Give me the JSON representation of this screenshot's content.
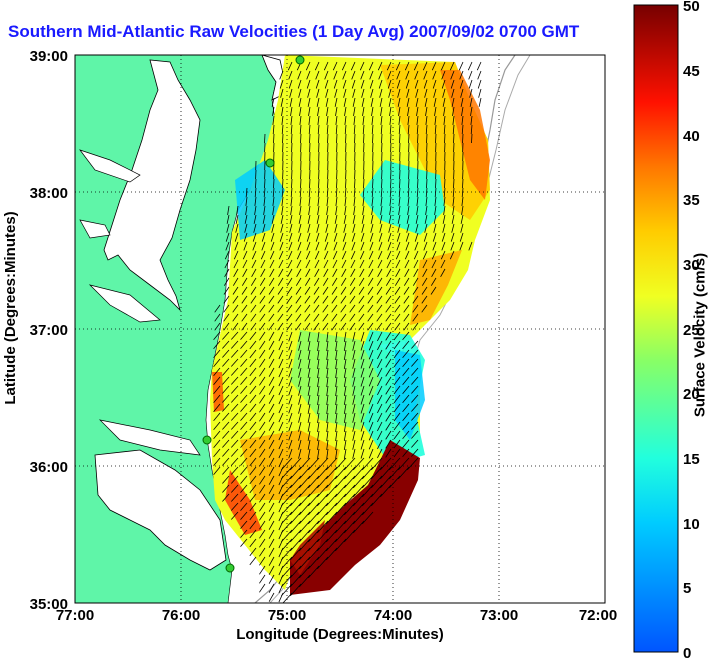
{
  "title": "Southern Mid-Atlantic Raw Velocities (1 Day Avg) 2007/09/02 0700 GMT",
  "axes": {
    "xlabel": "Longitude (Degrees:Minutes)",
    "ylabel": "Latitude (Degrees:Minutes)",
    "x_ticks": [
      "77:00",
      "76:00",
      "75:00",
      "74:00",
      "73:00",
      "72:00"
    ],
    "y_ticks": [
      "39:00",
      "38:00",
      "37:00",
      "36:00",
      "35:00"
    ]
  },
  "colorbar": {
    "label": "Surface Velocity (cm/s)",
    "min": 0,
    "max": 50,
    "ticks": [
      "50",
      "45",
      "40",
      "35",
      "30",
      "25",
      "20",
      "15",
      "10",
      "5",
      "0"
    ]
  },
  "colors": {
    "land": "#5ff5a8",
    "title": "#1a1aff",
    "station": "#33cc33"
  }
}
